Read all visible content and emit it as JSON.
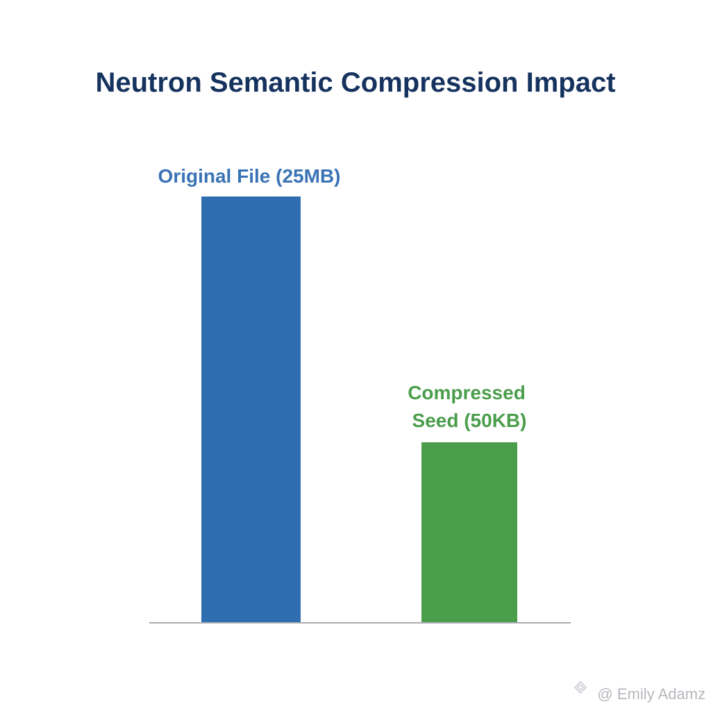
{
  "header": {
    "title": "Neutron Semantic Compression Impact"
  },
  "bars": [
    {
      "label_lines": [
        "Original File (25MB)"
      ]
    },
    {
      "label_lines": [
        "Compressed",
        "Seed (50KB)"
      ]
    }
  ],
  "watermark": "@ Emily Adamz"
}
